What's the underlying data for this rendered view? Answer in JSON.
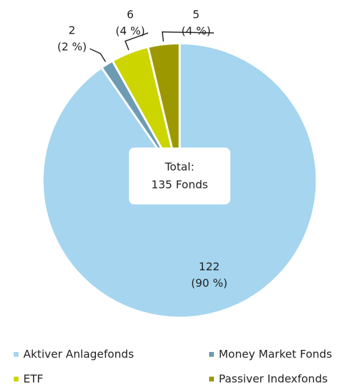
{
  "chart_data": {
    "type": "pie",
    "categories": [
      "Aktiver Anlagefonds",
      "Money Market Fonds",
      "ETF",
      "Passiver Indexfonds"
    ],
    "values": [
      122,
      2,
      6,
      5
    ],
    "percent_labels": [
      "(90 %)",
      "(2 %)",
      "(4 %)",
      "(4 %)"
    ],
    "colors": [
      "#a5d5ef",
      "#6e9bb4",
      "#cdd500",
      "#9c9900"
    ],
    "center_label": [
      "Total:",
      "135 Fonds"
    ],
    "legend": "bottom"
  }
}
